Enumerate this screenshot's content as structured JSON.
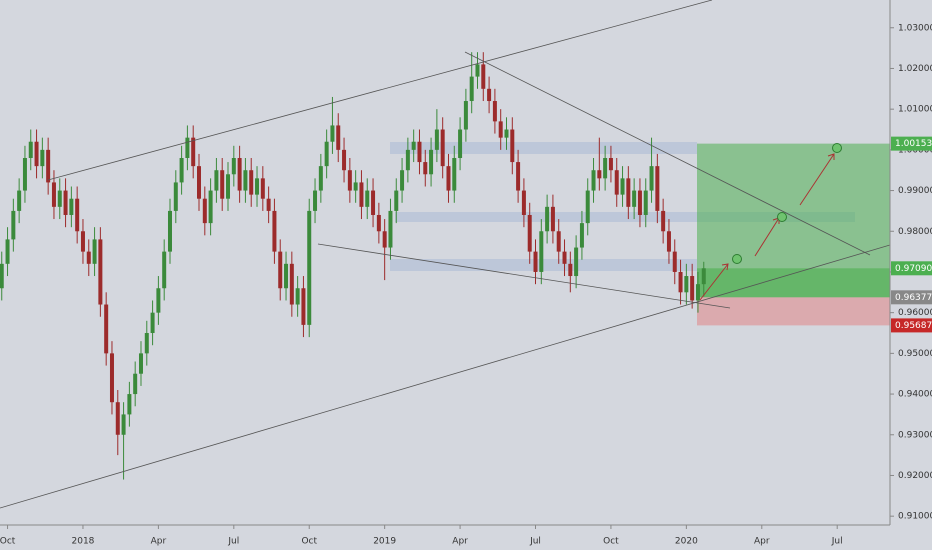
{
  "chart_data": {
    "type": "candlestick",
    "up_color": "#3b8a3b",
    "down_color": "#9c2b2b",
    "open": [
      0.966,
      0.972,
      0.978,
      0.985,
      0.99,
      0.998,
      1.002,
      0.996,
      1.0,
      0.992,
      0.986,
      0.99,
      0.984,
      0.988,
      0.98,
      0.975,
      0.972,
      0.978,
      0.962,
      0.95,
      0.938,
      0.93,
      0.935,
      0.94,
      0.945,
      0.95,
      0.955,
      0.96,
      0.966,
      0.975,
      0.985,
      0.992,
      0.998,
      1.003,
      0.996,
      0.988,
      0.982,
      0.99,
      0.995,
      0.988,
      0.994,
      0.998,
      0.99,
      0.995,
      0.989,
      0.993,
      0.988,
      0.985,
      0.975,
      0.966,
      0.972,
      0.962,
      0.966,
      0.957,
      0.985,
      0.99,
      0.996,
      1.002,
      1.006,
      1.0,
      0.995,
      0.99,
      0.992,
      0.986,
      0.99,
      0.984,
      0.98,
      0.976,
      0.985,
      0.99,
      0.995,
      1.0,
      1.002,
      0.997,
      0.994,
      1.0,
      1.005,
      0.996,
      0.99,
      0.998,
      1.005,
      1.012,
      1.018,
      1.021,
      1.015,
      1.012,
      1.007,
      1.003,
      1.005,
      0.997,
      0.99,
      0.984,
      0.975,
      0.97,
      0.98,
      0.986,
      0.98,
      0.975,
      0.972,
      0.969,
      0.976,
      0.982,
      0.99,
      0.995,
      0.993,
      0.998,
      0.995,
      0.989,
      0.993,
      0.986,
      0.99,
      0.984,
      0.99,
      0.996,
      0.985,
      0.98,
      0.975,
      0.97,
      0.965,
      0.969,
      0.963,
      0.967
    ],
    "high": [
      0.975,
      0.981,
      0.988,
      0.993,
      1.001,
      1.005,
      1.005,
      1.003,
      1.003,
      0.995,
      0.993,
      0.993,
      0.991,
      0.991,
      0.983,
      0.978,
      0.981,
      0.981,
      0.965,
      0.953,
      0.941,
      0.938,
      0.943,
      0.948,
      0.953,
      0.958,
      0.963,
      0.969,
      0.978,
      0.988,
      0.995,
      1.001,
      1.006,
      1.006,
      0.999,
      0.991,
      0.993,
      0.998,
      0.998,
      0.997,
      1.001,
      1.001,
      0.998,
      0.998,
      0.996,
      0.996,
      0.991,
      0.988,
      0.978,
      0.975,
      0.975,
      0.969,
      0.969,
      0.988,
      0.993,
      0.999,
      1.005,
      1.013,
      1.009,
      1.003,
      0.998,
      0.995,
      0.995,
      0.993,
      0.993,
      0.987,
      0.983,
      0.988,
      0.993,
      0.998,
      1.003,
      1.005,
      1.005,
      1.0,
      1.003,
      1.01,
      1.008,
      0.999,
      1.001,
      1.008,
      1.015,
      1.024,
      1.024,
      1.024,
      1.018,
      1.015,
      1.01,
      1.008,
      1.008,
      1.0,
      0.993,
      0.987,
      0.978,
      0.983,
      0.989,
      0.989,
      0.983,
      0.978,
      0.975,
      0.979,
      0.985,
      0.993,
      0.998,
      1.003,
      1.001,
      1.001,
      0.998,
      0.996,
      0.996,
      0.993,
      0.993,
      0.993,
      1.003,
      0.999,
      0.988,
      0.983,
      0.978,
      0.973,
      0.972,
      0.972,
      0.97,
      0.9725
    ],
    "low": [
      0.963,
      0.969,
      0.975,
      0.982,
      0.987,
      0.995,
      0.993,
      0.993,
      0.989,
      0.983,
      0.983,
      0.981,
      0.981,
      0.977,
      0.972,
      0.969,
      0.969,
      0.959,
      0.947,
      0.935,
      0.925,
      0.919,
      0.932,
      0.937,
      0.942,
      0.947,
      0.952,
      0.957,
      0.963,
      0.972,
      0.982,
      0.989,
      0.995,
      0.993,
      0.985,
      0.979,
      0.979,
      0.987,
      0.985,
      0.985,
      0.991,
      0.987,
      0.987,
      0.986,
      0.986,
      0.985,
      0.982,
      0.972,
      0.963,
      0.963,
      0.959,
      0.959,
      0.954,
      0.954,
      0.982,
      0.987,
      0.993,
      0.999,
      0.997,
      0.992,
      0.987,
      0.987,
      0.983,
      0.983,
      0.981,
      0.977,
      0.968,
      0.973,
      0.982,
      0.987,
      0.992,
      0.997,
      0.994,
      0.991,
      0.991,
      0.997,
      0.993,
      0.987,
      0.987,
      0.995,
      1.002,
      1.009,
      1.015,
      1.012,
      1.009,
      1.004,
      1.0,
      1.0,
      0.994,
      0.987,
      0.981,
      0.972,
      0.967,
      0.967,
      0.977,
      0.977,
      0.972,
      0.969,
      0.965,
      0.966,
      0.973,
      0.979,
      0.987,
      0.99,
      0.99,
      0.992,
      0.986,
      0.986,
      0.983,
      0.983,
      0.981,
      0.981,
      0.987,
      0.982,
      0.977,
      0.972,
      0.967,
      0.962,
      0.962,
      0.961,
      0.96,
      0.964
    ],
    "close": [
      0.972,
      0.978,
      0.985,
      0.99,
      0.998,
      1.002,
      0.996,
      1.0,
      0.992,
      0.986,
      0.99,
      0.984,
      0.988,
      0.98,
      0.975,
      0.972,
      0.978,
      0.962,
      0.95,
      0.938,
      0.93,
      0.935,
      0.94,
      0.945,
      0.95,
      0.955,
      0.96,
      0.966,
      0.975,
      0.985,
      0.992,
      0.998,
      1.003,
      0.996,
      0.988,
      0.982,
      0.99,
      0.995,
      0.988,
      0.994,
      0.998,
      0.99,
      0.995,
      0.989,
      0.993,
      0.988,
      0.985,
      0.975,
      0.966,
      0.972,
      0.962,
      0.966,
      0.957,
      0.985,
      0.99,
      0.996,
      1.002,
      1.006,
      1.0,
      0.995,
      0.99,
      0.992,
      0.986,
      0.99,
      0.984,
      0.98,
      0.976,
      0.985,
      0.99,
      0.995,
      1.0,
      1.002,
      0.997,
      0.994,
      1.0,
      1.005,
      0.996,
      0.99,
      0.998,
      1.005,
      1.012,
      1.018,
      1.021,
      1.015,
      1.012,
      1.007,
      1.003,
      1.005,
      0.997,
      0.99,
      0.984,
      0.975,
      0.97,
      0.98,
      0.986,
      0.98,
      0.975,
      0.972,
      0.969,
      0.976,
      0.982,
      0.99,
      0.995,
      0.993,
      0.998,
      0.995,
      0.989,
      0.993,
      0.986,
      0.99,
      0.984,
      0.99,
      0.996,
      0.985,
      0.98,
      0.975,
      0.97,
      0.965,
      0.969,
      0.963,
      0.967,
      0.9709
    ],
    "xlim": [
      -0.3,
      153.1
    ],
    "xticks": [
      {
        "value": 1,
        "label": "Oct"
      },
      {
        "value": 14,
        "label": "2018"
      },
      {
        "value": 27,
        "label": "Apr"
      },
      {
        "value": 40,
        "label": "Jul"
      },
      {
        "value": 53,
        "label": "Oct"
      },
      {
        "value": 66,
        "label": "2019"
      },
      {
        "value": 79,
        "label": "Apr"
      },
      {
        "value": 92,
        "label": "Jul"
      },
      {
        "value": 105,
        "label": "Oct"
      },
      {
        "value": 118,
        "label": "2020"
      },
      {
        "value": 131,
        "label": "Apr"
      },
      {
        "value": 144,
        "label": "Jul"
      },
      {
        "value": 157,
        "label": "Oct"
      }
    ],
    "ylim": [
      0.90783,
      1.03682
    ],
    "yticks": [
      {
        "value": 0.91,
        "label": "0.91000"
      },
      {
        "value": 0.92,
        "label": "0.92000"
      },
      {
        "value": 0.93,
        "label": "0.93000"
      },
      {
        "value": 0.94,
        "label": "0.94000"
      },
      {
        "value": 0.95,
        "label": "0.95000"
      },
      {
        "value": 0.96,
        "label": "0.96000"
      },
      {
        "value": 0.97,
        "label": "0.97000"
      },
      {
        "value": 0.98,
        "label": "0.98000"
      },
      {
        "value": 0.99,
        "label": "0.99000"
      },
      {
        "value": 1.0,
        "label": "1.00000"
      },
      {
        "value": 1.01,
        "label": "1.01000"
      },
      {
        "value": 1.02,
        "label": "1.02000"
      },
      {
        "value": 1.03,
        "label": "1.03000"
      }
    ],
    "position": {
      "target": 1.00153,
      "current": {
        "value": 0.9709,
        "label": "0.97090"
      },
      "entry": 0.96377,
      "stop": 0.95687,
      "target_color": "#4caf50",
      "stop_color": "#e57373",
      "entry_color": "#888888"
    }
  }
}
